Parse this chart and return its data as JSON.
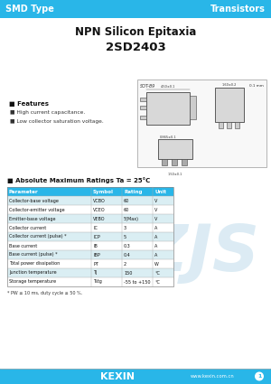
{
  "header_bg": "#29b6e8",
  "header_text_color": "#ffffff",
  "header_left": "SMD Type",
  "header_right": "Transistors",
  "title1": "NPN Silicon Epitaxia",
  "title2": "2SD2403",
  "features_title": "■ Features",
  "features": [
    "■ High current capacitance.",
    "■ Low collector saturation voltage."
  ],
  "abs_max_title": "■ Absolute Maximum Ratings Ta = 25°C",
  "table_header": [
    "Parameter",
    "Symbol",
    "Rating",
    "Unit"
  ],
  "table_rows": [
    [
      "Collector-base voltage",
      "VCBO",
      "60",
      "V"
    ],
    [
      "Collector-emitter voltage",
      "VCEO",
      "60",
      "V"
    ],
    [
      "Emitter-base voltage",
      "VEBO",
      "5(Max)",
      "V"
    ],
    [
      "Collector current",
      "IC",
      "3",
      "A"
    ],
    [
      "Collector current (pulse) *",
      "ICP",
      "5",
      "A"
    ],
    [
      "Base current",
      "IB",
      "0.3",
      "A"
    ],
    [
      "Base current (pulse) *",
      "IBP",
      "0.4",
      "A"
    ],
    [
      "Total power dissipation",
      "PT",
      "2",
      "W"
    ],
    [
      "Junction temperature",
      "TJ",
      "150",
      "°C"
    ],
    [
      "Storage temperature",
      "Tstg",
      "-55 to +150",
      "°C"
    ]
  ],
  "footnote": "* PW ≤ 10 ms, duty cycle ≤ 50 %.",
  "footer_logo": "KEXIN",
  "footer_url": "www.kexin.com.cn",
  "footer_bg": "#29b6e8",
  "bg_color": "#ffffff",
  "table_header_bg": "#29b6e8",
  "table_row_bg_even": "#daeef3",
  "table_row_bg_odd": "#ffffff",
  "watermark_color": "#c0dcec",
  "table_border_color": "#888888",
  "table_line_color": "#aaaaaa",
  "pkg_border": "#555555",
  "pkg_fill": "#e8e8e8",
  "pkg_pin_fill": "#cccccc"
}
